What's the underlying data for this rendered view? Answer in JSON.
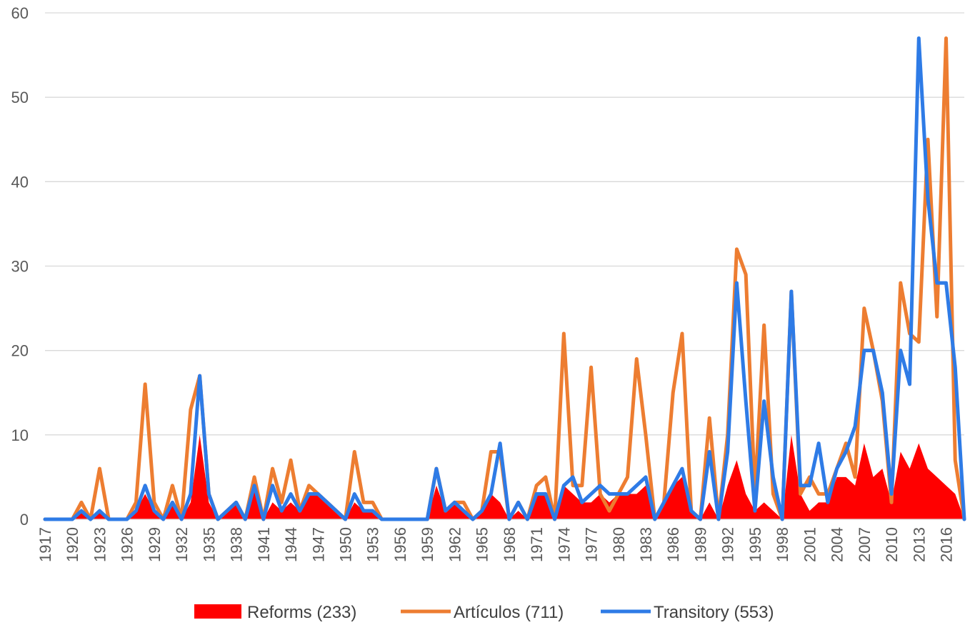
{
  "chart_data": {
    "type": "line",
    "title": "",
    "xlabel": "",
    "ylabel": "",
    "ylim": [
      0,
      60
    ],
    "yticks": [
      0,
      10,
      20,
      30,
      40,
      50,
      60
    ],
    "xlim": [
      1917,
      2018
    ],
    "x_tick_labels": [
      "1917",
      "1920",
      "1923",
      "1926",
      "1929",
      "1932",
      "1935",
      "1938",
      "1941",
      "1944",
      "1947",
      "1950",
      "1953",
      "1956",
      "1959",
      "1962",
      "1965",
      "1968",
      "1971",
      "1974",
      "1977",
      "1980",
      "1983",
      "1986",
      "1989",
      "1992",
      "1995",
      "1998",
      "2001",
      "2004",
      "2007",
      "2010",
      "2013",
      "2016"
    ],
    "grid": "horizontal",
    "legend_position": "bottom",
    "x": [
      1917,
      1918,
      1919,
      1920,
      1921,
      1922,
      1923,
      1924,
      1925,
      1926,
      1927,
      1928,
      1929,
      1930,
      1931,
      1932,
      1933,
      1934,
      1935,
      1936,
      1937,
      1938,
      1939,
      1940,
      1941,
      1942,
      1943,
      1944,
      1945,
      1946,
      1947,
      1948,
      1949,
      1950,
      1951,
      1952,
      1953,
      1954,
      1955,
      1956,
      1957,
      1958,
      1959,
      1960,
      1961,
      1962,
      1963,
      1964,
      1965,
      1966,
      1967,
      1968,
      1969,
      1970,
      1971,
      1972,
      1973,
      1974,
      1975,
      1976,
      1977,
      1978,
      1979,
      1980,
      1981,
      1982,
      1983,
      1984,
      1985,
      1986,
      1987,
      1988,
      1989,
      1990,
      1991,
      1992,
      1993,
      1994,
      1995,
      1996,
      1997,
      1998,
      1999,
      2000,
      2001,
      2002,
      2003,
      2004,
      2005,
      2006,
      2007,
      2008,
      2009,
      2010,
      2011,
      2012,
      2013,
      2014,
      2015,
      2016,
      2017,
      2018
    ],
    "series": [
      {
        "name": "Reforms (233)",
        "style": "area",
        "color": "#ff0000",
        "values": [
          0,
          0,
          0,
          0,
          1,
          0,
          1,
          0,
          0,
          0,
          1,
          3,
          1,
          0,
          2,
          0,
          2,
          10,
          2,
          0,
          1,
          2,
          0,
          4,
          0,
          2,
          1,
          2,
          1,
          3,
          3,
          2,
          1,
          0,
          2,
          1,
          1,
          0,
          0,
          0,
          0,
          0,
          0,
          4,
          1,
          2,
          1,
          0,
          1,
          3,
          2,
          0,
          1,
          0,
          3,
          3,
          0,
          4,
          3,
          2,
          2,
          3,
          2,
          3,
          3,
          3,
          4,
          0,
          2,
          4,
          5,
          1,
          0,
          2,
          0,
          4,
          7,
          3,
          1,
          2,
          1,
          0,
          10,
          3,
          1,
          2,
          2,
          5,
          5,
          4,
          9,
          5,
          6,
          2,
          8,
          6,
          9,
          6,
          5,
          4,
          3,
          0
        ]
      },
      {
        "name": "Artículos (711)",
        "style": "line",
        "color": "#ed7d31",
        "values": [
          0,
          0,
          0,
          0,
          2,
          0,
          6,
          0,
          0,
          0,
          2,
          16,
          2,
          0,
          4,
          0,
          13,
          17,
          3,
          0,
          1,
          2,
          0,
          5,
          0,
          6,
          2,
          7,
          1,
          4,
          3,
          2,
          1,
          0,
          8,
          2,
          2,
          0,
          0,
          0,
          0,
          0,
          0,
          6,
          1,
          2,
          2,
          0,
          1,
          8,
          8,
          0,
          2,
          0,
          4,
          5,
          0,
          22,
          4,
          4,
          18,
          3,
          1,
          3,
          5,
          19,
          10,
          0,
          2,
          15,
          22,
          1,
          0,
          12,
          0,
          10,
          32,
          29,
          3,
          23,
          3,
          0,
          27,
          3,
          5,
          3,
          3,
          6,
          9,
          5,
          25,
          20,
          14,
          2,
          28,
          22,
          21,
          45,
          24,
          57,
          7,
          0
        ]
      },
      {
        "name": "Transitory (553)",
        "style": "line",
        "color": "#2e7be6",
        "values": [
          0,
          0,
          0,
          0,
          1,
          0,
          1,
          0,
          0,
          0,
          1,
          4,
          1,
          0,
          2,
          0,
          3,
          17,
          3,
          0,
          1,
          2,
          0,
          4,
          0,
          4,
          1,
          3,
          1,
          3,
          3,
          2,
          1,
          0,
          3,
          1,
          1,
          0,
          0,
          0,
          0,
          0,
          0,
          6,
          1,
          2,
          1,
          0,
          1,
          3,
          9,
          0,
          2,
          0,
          3,
          3,
          0,
          4,
          5,
          2,
          3,
          4,
          3,
          3,
          3,
          4,
          5,
          0,
          2,
          4,
          6,
          1,
          0,
          8,
          0,
          8,
          28,
          14,
          1,
          14,
          5,
          0,
          27,
          4,
          4,
          9,
          2,
          6,
          8,
          11,
          20,
          20,
          15,
          3,
          20,
          16,
          57,
          38,
          28,
          28,
          18,
          0
        ]
      }
    ]
  }
}
